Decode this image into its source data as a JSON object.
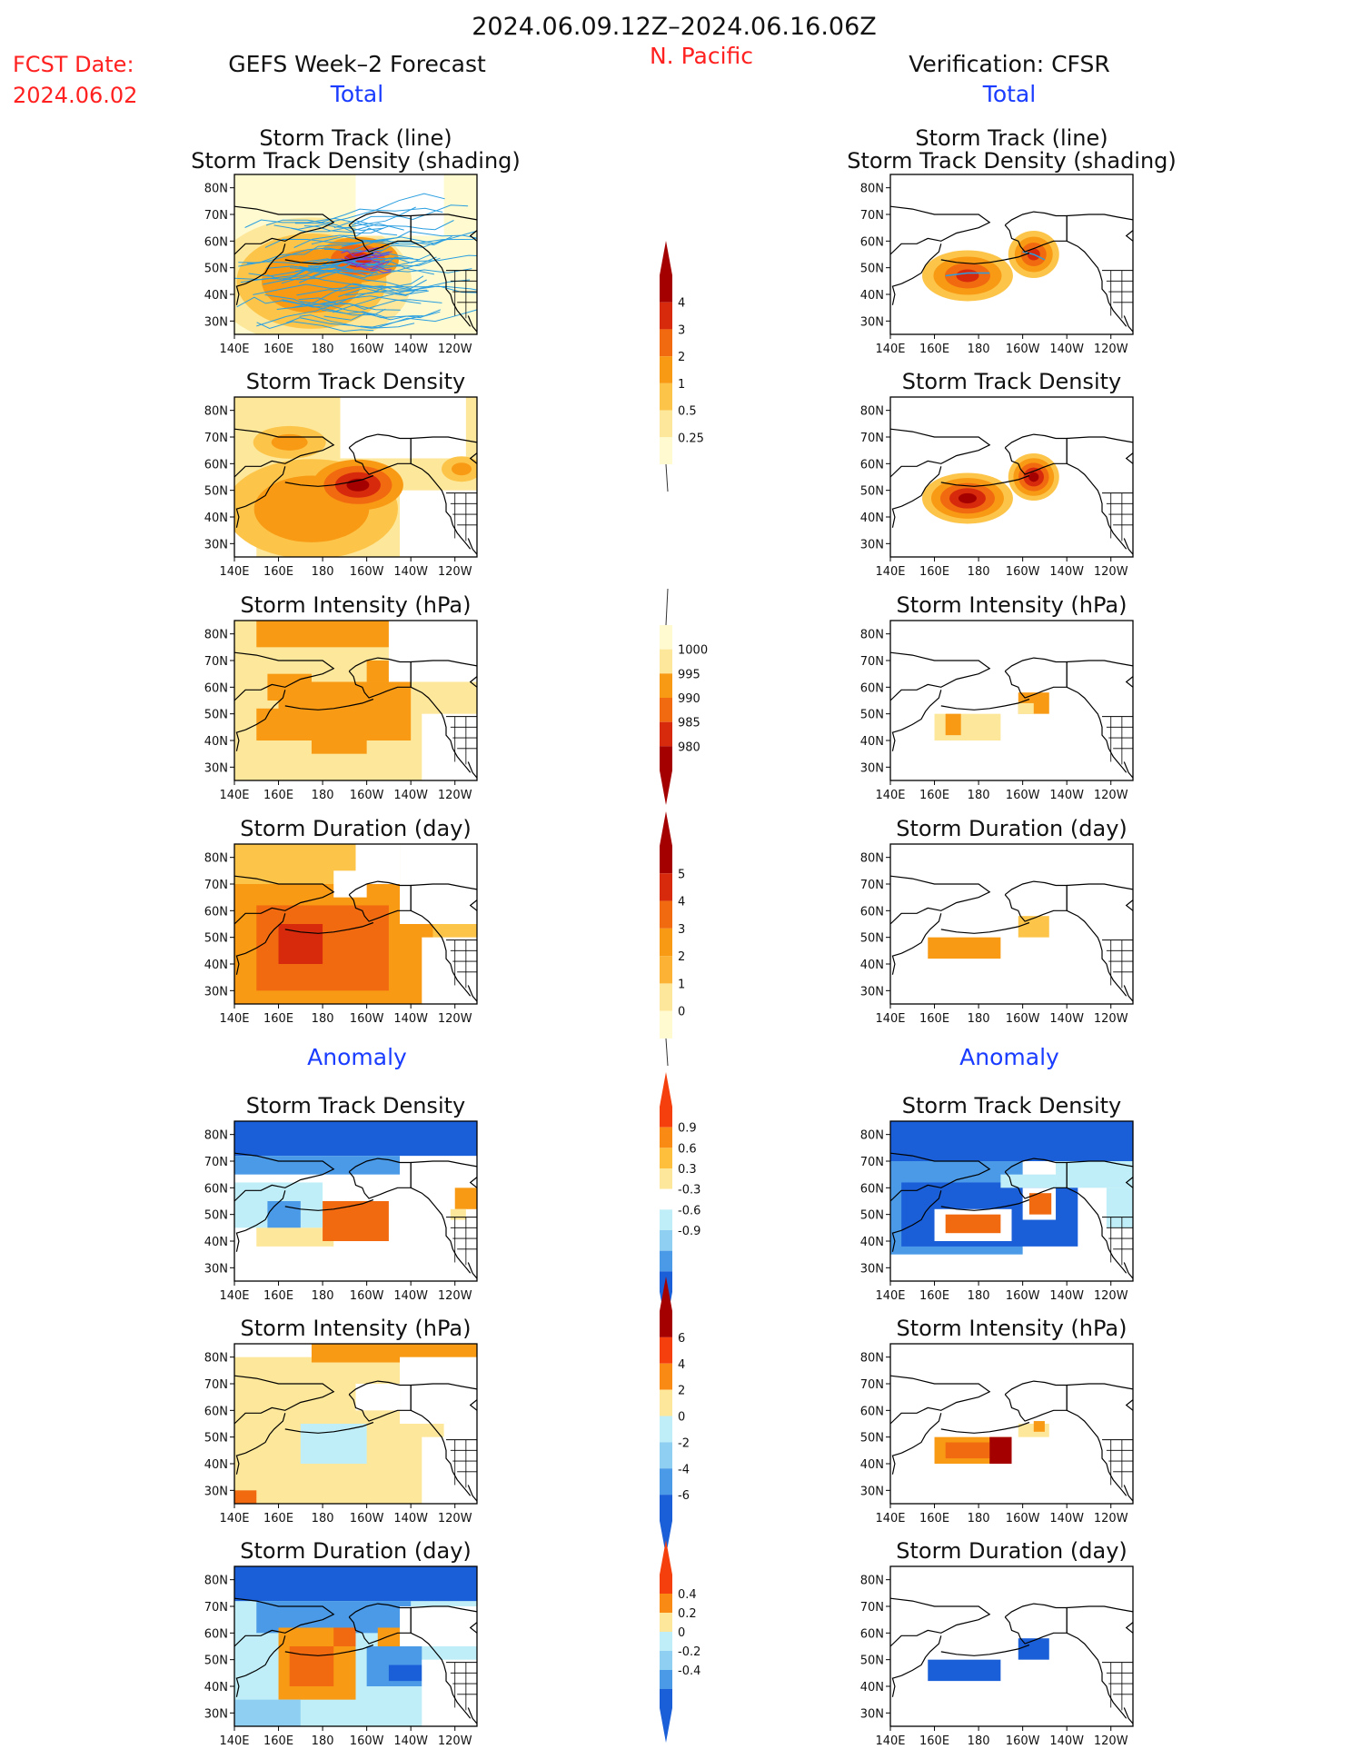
{
  "header": {
    "date_range": "2024.06.09.12Z–2024.06.16.06Z",
    "region": "N. Pacific",
    "fcst_label": "FCST Date:",
    "fcst_date": "2024.06.02",
    "left_title": "GEFS Week–2 Forecast",
    "right_title": "Verification: CFSR",
    "total_label": "Total",
    "anomaly_label": "Anomaly"
  },
  "colors": {
    "red_text": "#ff2020",
    "blue_text": "#1a3cff",
    "land_outline": "#000000"
  },
  "axes": {
    "x_ticks": [
      "140E",
      "160E",
      "180",
      "160W",
      "140W",
      "120W"
    ],
    "y_ticks": [
      "80N",
      "70N",
      "60N",
      "50N",
      "40N",
      "30N"
    ]
  },
  "panel_titles": {
    "track_line": "Storm Track (line)",
    "track_shading": "Storm Track Density (shading)",
    "track_density": "Storm Track Density",
    "intensity": "Storm Intensity (hPa)",
    "duration": "Storm Duration (day)"
  },
  "colorbars": {
    "density_total": {
      "labels": [
        "4",
        "3",
        "2",
        "1",
        "0.5",
        "0.25"
      ],
      "colors": [
        "#a50000",
        "#d72a0c",
        "#f16a10",
        "#f89a14",
        "#fcc54a",
        "#fde79a",
        "#fffad0"
      ]
    },
    "intensity_total": {
      "labels": [
        "1000",
        "995",
        "990",
        "985",
        "980"
      ],
      "colors": [
        "#fffad0",
        "#fde79a",
        "#f89a14",
        "#f16a10",
        "#d72a0c",
        "#a50000"
      ]
    },
    "duration_total": {
      "labels": [
        "5",
        "4",
        "3",
        "2",
        "1",
        "0"
      ],
      "colors": [
        "#a50000",
        "#d72a0c",
        "#f16a10",
        "#f89a14",
        "#fcb234",
        "#fde79a",
        "#fffad0"
      ]
    },
    "density_anom": {
      "labels": [
        "0.9",
        "0.6",
        "0.3",
        "-0.3",
        "-0.6",
        "-0.9"
      ],
      "colors": [
        "#f5400d",
        "#f98b14",
        "#fdbf3c",
        "#fde79a",
        "#ffffff",
        "#bfeef8",
        "#8fd0f2",
        "#4a9ae8",
        "#1a5fd8"
      ]
    },
    "intensity_anom": {
      "labels": [
        "6",
        "4",
        "2",
        "0",
        "-2",
        "-4",
        "-6"
      ],
      "colors": [
        "#a50000",
        "#f5400d",
        "#f98b14",
        "#fde79a",
        "#bfeef8",
        "#8fd0f2",
        "#4a9ae8",
        "#1a5fd8"
      ]
    },
    "duration_anom": {
      "labels": [
        "0.4",
        "0.2",
        "0",
        "-0.2",
        "-0.4"
      ],
      "colors": [
        "#f5400d",
        "#f98b14",
        "#fde79a",
        "#bfeef8",
        "#8fd0f2",
        "#4a9ae8",
        "#1a5fd8"
      ]
    }
  },
  "chart_data": [
    {
      "type": "heatmap",
      "panel": "forecast-total-track",
      "title": "Storm Track (line) / Storm Track Density (shading)",
      "features": [
        {
          "lon": 195,
          "lat": 52,
          "level": 3
        },
        {
          "lon": 200,
          "lat": 55,
          "level": 2
        },
        {
          "lon": 185,
          "lat": 48,
          "level": 1.5
        }
      ]
    },
    {
      "type": "heatmap",
      "panel": "verification-total-track",
      "title": "Storm Track (line) / Storm Track Density (shading)",
      "features": [
        {
          "lon": 175,
          "lat": 47,
          "level": 3
        },
        {
          "lon": 205,
          "lat": 55,
          "level": 4
        }
      ]
    },
    {
      "type": "heatmap",
      "panel": "forecast-total-density",
      "title": "Storm Track Density",
      "features": [
        {
          "lon": 195,
          "lat": 52,
          "level": 4
        },
        {
          "lon": 175,
          "lat": 42,
          "level": 1
        },
        {
          "lon": 160,
          "lat": 65,
          "level": 0.5
        }
      ]
    },
    {
      "type": "heatmap",
      "panel": "verification-total-density",
      "title": "Storm Track Density",
      "features": [
        {
          "lon": 175,
          "lat": 47,
          "level": 4
        },
        {
          "lon": 205,
          "lat": 55,
          "level": 4
        }
      ]
    },
    {
      "type": "heatmap",
      "panel": "forecast-total-intensity",
      "title": "Storm Intensity (hPa)",
      "features": [
        {
          "lon": 190,
          "lat": 50,
          "level": 995
        }
      ]
    },
    {
      "type": "heatmap",
      "panel": "verification-total-intensity",
      "title": "Storm Intensity (hPa)",
      "features": [
        {
          "lon": 175,
          "lat": 45,
          "level": 1000
        },
        {
          "lon": 205,
          "lat": 53,
          "level": 995
        }
      ]
    },
    {
      "type": "heatmap",
      "panel": "forecast-total-duration",
      "title": "Storm Duration (day)",
      "features": [
        {
          "lon": 180,
          "lat": 45,
          "level": 4
        },
        {
          "lon": 195,
          "lat": 55,
          "level": 3
        }
      ]
    },
    {
      "type": "heatmap",
      "panel": "verification-total-duration",
      "title": "Storm Duration (day)",
      "features": [
        {
          "lon": 175,
          "lat": 45,
          "level": 2
        },
        {
          "lon": 205,
          "lat": 53,
          "level": 1
        }
      ]
    },
    {
      "type": "heatmap",
      "panel": "forecast-anomaly-density",
      "title": "Storm Track Density",
      "features": [
        {
          "lon": 195,
          "lat": 50,
          "level": 0.9
        },
        {
          "lon": 160,
          "lat": 80,
          "level": -0.9
        },
        {
          "lon": 160,
          "lat": 55,
          "level": -0.6
        }
      ]
    },
    {
      "type": "heatmap",
      "panel": "verification-anomaly-density",
      "title": "Storm Track Density",
      "features": [
        {
          "lon": 175,
          "lat": 47,
          "level": 0.9
        },
        {
          "lon": 205,
          "lat": 55,
          "level": 0.9
        },
        {
          "lon": 190,
          "lat": 78,
          "level": -0.9
        }
      ]
    },
    {
      "type": "heatmap",
      "panel": "forecast-anomaly-intensity",
      "title": "Storm Intensity (hPa)",
      "features": [
        {
          "lon": 190,
          "lat": 78,
          "level": 2
        },
        {
          "lon": 180,
          "lat": 48,
          "level": -2
        },
        {
          "lon": 145,
          "lat": 30,
          "level": 4
        }
      ]
    },
    {
      "type": "heatmap",
      "panel": "verification-anomaly-intensity",
      "title": "Storm Intensity (hPa)",
      "features": [
        {
          "lon": 175,
          "lat": 45,
          "level": 4
        },
        {
          "lon": 190,
          "lat": 45,
          "level": 6
        },
        {
          "lon": 205,
          "lat": 52,
          "level": 2
        }
      ]
    },
    {
      "type": "heatmap",
      "panel": "forecast-anomaly-duration",
      "title": "Storm Duration (day)",
      "features": [
        {
          "lon": 180,
          "lat": 45,
          "level": 0.4
        },
        {
          "lon": 190,
          "lat": 80,
          "level": -0.4
        }
      ]
    },
    {
      "type": "heatmap",
      "panel": "verification-anomaly-duration",
      "title": "Storm Duration (day)",
      "features": [
        {
          "lon": 175,
          "lat": 45,
          "level": -0.4
        },
        {
          "lon": 205,
          "lat": 55,
          "level": -0.4
        }
      ]
    }
  ]
}
